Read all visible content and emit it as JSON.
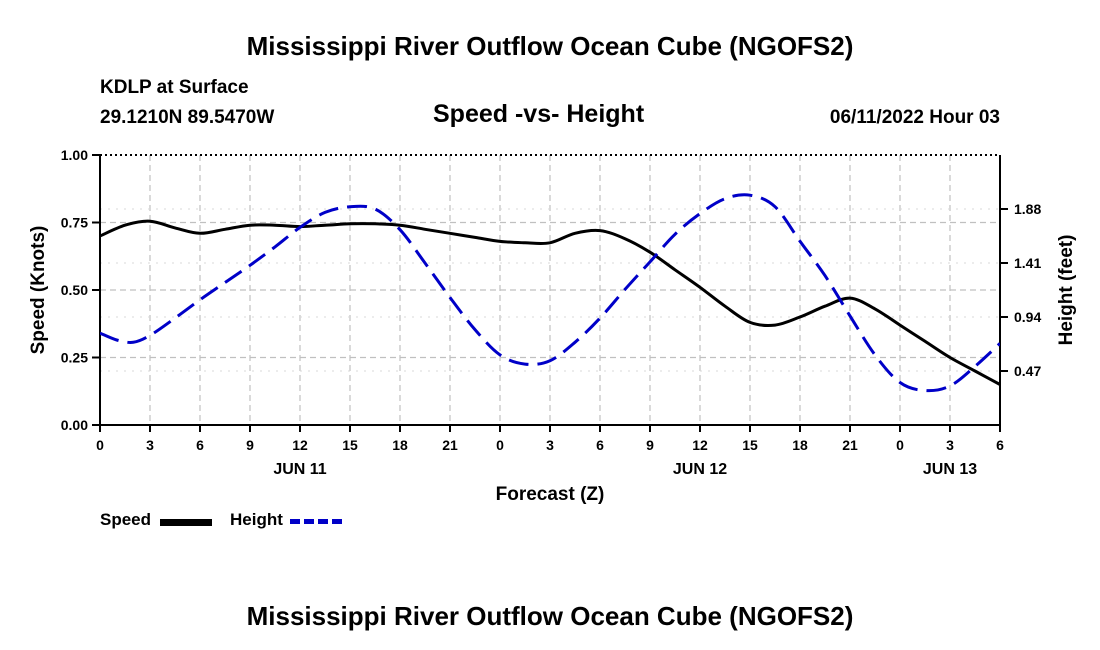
{
  "page": {
    "title": "Mississippi River Outflow Ocean Cube (NGOFS2)",
    "footer_title": "Mississippi River Outflow Ocean Cube (NGOFS2)"
  },
  "station": {
    "name": "KDLP at Surface",
    "coords": "29.1210N  89.5470W",
    "datetime": "06/11/2022 Hour 03"
  },
  "legend": {
    "speed_label": "Speed",
    "height_label": "Height"
  },
  "colors": {
    "speed": "#000000",
    "height": "#0000c8",
    "grid": "#c0c0c0"
  },
  "chart_data": {
    "type": "line",
    "title": "Speed -vs- Height",
    "xlabel": "Forecast (Z)",
    "ylabel": "Speed (Knots)",
    "y2label": "Height (feet)",
    "x_tick_labels": [
      "0",
      "3",
      "6",
      "9",
      "12",
      "15",
      "18",
      "21",
      "0",
      "3",
      "6",
      "9",
      "12",
      "15",
      "18",
      "21",
      "0",
      "3",
      "6"
    ],
    "date_labels": [
      {
        "label": "JUN 11",
        "x": 12
      },
      {
        "label": "JUN 12",
        "x": 36
      },
      {
        "label": "JUN 13",
        "x": 51
      }
    ],
    "xlim": [
      0,
      54
    ],
    "ylim": [
      0,
      1.0
    ],
    "y_ticks": [
      "0.00",
      "0.25",
      "0.50",
      "0.75",
      "1.00"
    ],
    "y2lim": [
      0,
      2.35
    ],
    "y2_ticks": [
      "0.47",
      "0.94",
      "1.41",
      "1.88"
    ],
    "series": [
      {
        "name": "Speed",
        "axis": "left",
        "style": "solid",
        "x": [
          0,
          1.5,
          3,
          4.5,
          6,
          7.5,
          9,
          10.5,
          12,
          13.5,
          15,
          16.5,
          18,
          19.5,
          21,
          22.5,
          24,
          25.5,
          27,
          28.5,
          30,
          31.5,
          33,
          34.5,
          36,
          37.5,
          39,
          40.5,
          42,
          43.5,
          45,
          46.5,
          48,
          49.5,
          51,
          52.5,
          54
        ],
        "values": [
          0.7,
          0.74,
          0.755,
          0.73,
          0.71,
          0.725,
          0.74,
          0.74,
          0.735,
          0.74,
          0.745,
          0.745,
          0.74,
          0.725,
          0.71,
          0.695,
          0.68,
          0.675,
          0.675,
          0.71,
          0.72,
          0.69,
          0.64,
          0.575,
          0.51,
          0.44,
          0.38,
          0.37,
          0.4,
          0.44,
          0.47,
          0.43,
          0.37,
          0.31,
          0.25,
          0.2,
          0.15
        ]
      },
      {
        "name": "Height",
        "axis": "right",
        "style": "dashed",
        "x": [
          0,
          1,
          2,
          3,
          4.5,
          6,
          7.5,
          9,
          10.5,
          12,
          13.5,
          15,
          16.5,
          18,
          19.5,
          21,
          22.5,
          24,
          25.5,
          27,
          28.5,
          30,
          31.5,
          33,
          34.5,
          36,
          37.5,
          39,
          40.5,
          42,
          43.5,
          45,
          46.5,
          48,
          49.5,
          51,
          52.5,
          54
        ],
        "values": [
          0.8,
          0.74,
          0.72,
          0.78,
          0.93,
          1.09,
          1.24,
          1.39,
          1.55,
          1.72,
          1.85,
          1.9,
          1.88,
          1.7,
          1.41,
          1.11,
          0.83,
          0.61,
          0.53,
          0.56,
          0.72,
          0.93,
          1.18,
          1.42,
          1.66,
          1.84,
          1.97,
          2.0,
          1.9,
          1.6,
          1.3,
          0.95,
          0.61,
          0.37,
          0.3,
          0.34,
          0.51,
          0.71
        ]
      }
    ]
  }
}
